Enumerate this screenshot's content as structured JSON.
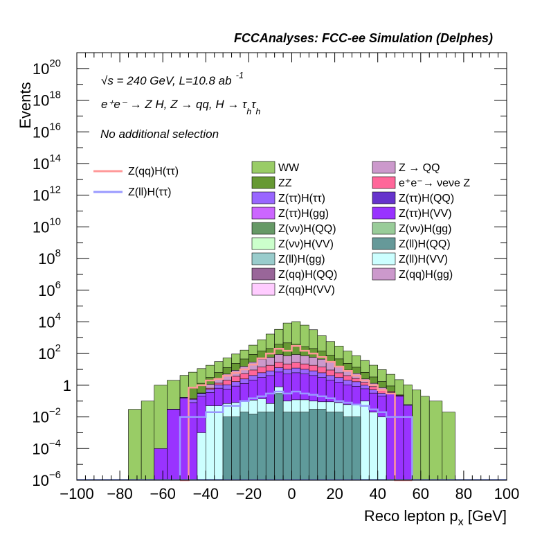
{
  "chart_data": {
    "type": "histogram-stacked",
    "title": "FCCAnalyses: FCC-ee Simulation (Delphes)",
    "xlabel": "Reco lepton p",
    "xlabel_sub": "x",
    "xlabel_unit": "[GeV]",
    "ylabel": "Events",
    "xlim": [
      -100,
      100
    ],
    "ylim": [
      1e-06,
      1e+21
    ],
    "ylog": true,
    "x_ticks": [
      "−100",
      "−80",
      "−60",
      "−40",
      "−20",
      "0",
      "20",
      "40",
      "60",
      "80",
      "100"
    ],
    "y_ticks": [
      {
        "exp": -6,
        "label": "10",
        "sup": "−6"
      },
      {
        "exp": -4,
        "label": "10",
        "sup": "−4"
      },
      {
        "exp": -2,
        "label": "10",
        "sup": "−2"
      },
      {
        "exp": 0,
        "label": "1",
        "sup": ""
      },
      {
        "exp": 2,
        "label": "10",
        "sup": "2"
      },
      {
        "exp": 4,
        "label": "10",
        "sup": "4"
      },
      {
        "exp": 6,
        "label": "10",
        "sup": "6"
      },
      {
        "exp": 8,
        "label": "10",
        "sup": "8"
      },
      {
        "exp": 10,
        "label": "10",
        "sup": "10"
      },
      {
        "exp": 12,
        "label": "10",
        "sup": "12"
      },
      {
        "exp": 14,
        "label": "10",
        "sup": "14"
      },
      {
        "exp": 16,
        "label": "10",
        "sup": "16"
      },
      {
        "exp": 18,
        "label": "10",
        "sup": "18"
      },
      {
        "exp": 20,
        "label": "10",
        "sup": "20"
      }
    ],
    "annotations": {
      "energy": "√s = 240 GeV, L=10.8 ab",
      "energy_sup": "-1",
      "process": "e⁺e⁻ → Z H, Z → qq, H → τ",
      "process_sub1": "h",
      "process_tau2": "τ",
      "process_sub2": "h",
      "selection": "No additional selection"
    },
    "bin_edges": [
      -76,
      -70,
      -64,
      -58,
      -52,
      -48,
      -44,
      -40,
      -36,
      -32,
      -28,
      -24,
      -20,
      -16,
      -12,
      -8,
      -4,
      0,
      4,
      8,
      12,
      16,
      20,
      24,
      28,
      32,
      36,
      40,
      44,
      48,
      52,
      56,
      60,
      64,
      70,
      76
    ],
    "stack_components": [
      {
        "name": "Z(ll)H(QQ)",
        "color": "#5f9a9a",
        "values": [
          0,
          0,
          0,
          0,
          0,
          0,
          0,
          1e-06,
          1e-06,
          0.01,
          0.01,
          0.02,
          0.015,
          0.02,
          0.02,
          0.3,
          0.02,
          0.02,
          0.02,
          0.03,
          0.03,
          0.02,
          0.02,
          0.01,
          0.01,
          0,
          0,
          0,
          0,
          0,
          0,
          0,
          0,
          0,
          0
        ]
      },
      {
        "name": "Z(ll)H(VV)",
        "color": "#ccffff",
        "values": [
          0,
          0,
          0,
          0,
          0,
          0,
          0.001,
          0.05,
          0.05,
          0.06,
          0.07,
          0.08,
          0.1,
          0.12,
          0.05,
          0.5,
          0.08,
          0.1,
          0.1,
          0.07,
          0.06,
          0.07,
          0.06,
          0.05,
          0.05,
          0.1,
          0.02,
          0.01,
          0,
          0,
          0,
          0,
          0,
          0,
          0
        ]
      },
      {
        "name": "Z(ττ)H(VV)",
        "color": "#9933ff",
        "values": [
          0,
          0,
          0.0001,
          0.03,
          0.15,
          0.08,
          0.2,
          0.3,
          0.6,
          0.5,
          0.8,
          1.2,
          2,
          3,
          4,
          6,
          5,
          6,
          5,
          4,
          3,
          2,
          1.5,
          1,
          0.8,
          0.5,
          0.3,
          0.2,
          0.3,
          0.2,
          0.05,
          0,
          0,
          0,
          0
        ]
      },
      {
        "name": "Z(ττ)H(ττ)",
        "color": "#9966ff",
        "values": [
          0,
          0,
          0,
          0.001,
          0.02,
          0.05,
          0.1,
          0.2,
          0.4,
          0.5,
          0.8,
          1.2,
          2,
          3,
          4,
          6,
          5,
          6,
          5,
          4,
          3,
          2,
          1.5,
          1,
          0.8,
          0.4,
          0.2,
          0.1,
          0.05,
          0.02,
          0.01,
          0,
          0,
          0,
          0
        ]
      },
      {
        "name": "e⁺e⁻→ νeνe Z",
        "color": "#ff6699",
        "values": [
          0,
          0,
          0,
          0,
          0.001,
          0.01,
          0.02,
          0.1,
          0.3,
          1,
          2,
          3,
          5,
          8,
          10,
          15,
          12,
          15,
          12,
          10,
          8,
          5,
          3,
          2,
          1,
          0.5,
          0.3,
          0.2,
          0.05,
          0.02,
          0,
          0,
          0,
          0,
          0
        ]
      },
      {
        "name": "Z → QQ",
        "color": "#cc99cc",
        "values": [
          0,
          0,
          0,
          0,
          0,
          0,
          0,
          0.5,
          1,
          3,
          5,
          10,
          20,
          30,
          40,
          60,
          50,
          60,
          50,
          40,
          30,
          20,
          10,
          5,
          3,
          1,
          0.5,
          0.2,
          0,
          0,
          0,
          0,
          0,
          0,
          0
        ]
      },
      {
        "name": "ZZ",
        "color": "#669933",
        "values": [
          0,
          0,
          0,
          0,
          0,
          0.5,
          1,
          2,
          4,
          8,
          15,
          30,
          60,
          100,
          150,
          300,
          400,
          300,
          200,
          150,
          100,
          50,
          30,
          15,
          8,
          4,
          2,
          1,
          0.5,
          0,
          0,
          0,
          0,
          0,
          0
        ]
      },
      {
        "name": "WW",
        "color": "#99cc66",
        "values": [
          0.03,
          0.1,
          1,
          2,
          4,
          6,
          10,
          15,
          25,
          40,
          70,
          120,
          250,
          600,
          1500,
          3000,
          8000,
          10000,
          6000,
          3000,
          1200,
          500,
          250,
          120,
          60,
          30,
          15,
          8,
          4,
          2,
          1,
          0.5,
          0.2,
          0.1,
          0.02
        ]
      }
    ],
    "overlay_bin_edges": [
      -52,
      -48,
      -44,
      -40,
      -36,
      -32,
      -28,
      -24,
      -20,
      -16,
      -12,
      -8,
      -4,
      0,
      4,
      8,
      12,
      16,
      20,
      24,
      28,
      32,
      36,
      40,
      44,
      48,
      52,
      56
    ],
    "overlays": [
      {
        "name": "Z(qq)H(ττ)",
        "color": "#ff9999",
        "values": [
          1e-06,
          0.7,
          1,
          2,
          2.5,
          4,
          6,
          10,
          20,
          50,
          100,
          200,
          150,
          300,
          150,
          100,
          60,
          30,
          15,
          8,
          4,
          2,
          1,
          0.5,
          0.3,
          1e-06,
          1e-06
        ]
      },
      {
        "name": "Z(ll)H(ττ)",
        "color": "#9999ff",
        "values": [
          0.01,
          0.01,
          0.01,
          0.02,
          0.02,
          0.05,
          0.05,
          0.1,
          0.15,
          0.2,
          0.3,
          0.4,
          0.3,
          0.4,
          0.3,
          0.25,
          0.2,
          0.15,
          0.1,
          0.08,
          0.06,
          0.05,
          0.03,
          0.02,
          0.01,
          0.01,
          0.01
        ]
      }
    ],
    "legend_overlays": [
      "Z(qq)H(ττ)",
      "Z(ll)H(ττ)"
    ],
    "legend_entries": [
      {
        "name": "WW",
        "color": "#99cc66"
      },
      {
        "name": "Z → QQ",
        "color": "#cc99cc"
      },
      {
        "name": "ZZ",
        "color": "#669933"
      },
      {
        "name": "e⁺e⁻→ νeνe Z",
        "color": "#ff6699"
      },
      {
        "name": "Z(ττ)H(ττ)",
        "color": "#9966ff"
      },
      {
        "name": "Z(ττ)H(QQ)",
        "color": "#6633cc"
      },
      {
        "name": "Z(ττ)H(gg)",
        "color": "#cc66ff"
      },
      {
        "name": "Z(ττ)H(VV)",
        "color": "#9933ff"
      },
      {
        "name": "Z(νν)H(QQ)",
        "color": "#669966"
      },
      {
        "name": "Z(νν)H(gg)",
        "color": "#99cc99"
      },
      {
        "name": "Z(νν)H(VV)",
        "color": "#ccffcc"
      },
      {
        "name": "Z(ll)H(QQ)",
        "color": "#669999"
      },
      {
        "name": "Z(ll)H(gg)",
        "color": "#99cccc"
      },
      {
        "name": "Z(ll)H(VV)",
        "color": "#ccffff"
      },
      {
        "name": "Z(qq)H(QQ)",
        "color": "#996699"
      },
      {
        "name": "Z(qq)H(gg)",
        "color": "#cc99cc"
      },
      {
        "name": "Z(qq)H(VV)",
        "color": "#ffccff"
      }
    ]
  }
}
